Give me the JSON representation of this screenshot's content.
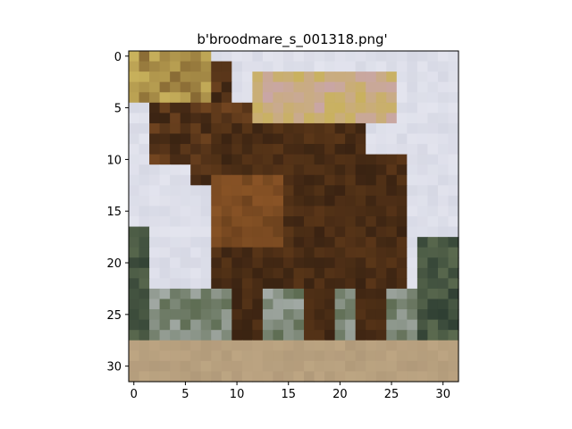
{
  "figure": {
    "title": "b'broodmare_s_001318.png'"
  },
  "image": {
    "subject": "horse-photo",
    "grid": [
      32,
      32
    ],
    "palette": {
      "sky": "#d6d8e4",
      "sky_light": "#e3e4ee",
      "horse_dark": "#3a2312",
      "horse_mid": "#5a3618",
      "horse_light": "#8a5426",
      "ground": "#b19a7a",
      "sand": "#c2aa86",
      "grass": "#5b6a4f",
      "tree": "#2f3f33",
      "yellow": "#c9b25c",
      "pink": "#c9a6a6"
    }
  },
  "axes": {
    "x_ticks": [
      "0",
      "5",
      "10",
      "15",
      "20",
      "25",
      "30"
    ],
    "y_ticks": [
      "0",
      "5",
      "10",
      "15",
      "20",
      "25",
      "30"
    ],
    "xlim": [
      -0.5,
      31.5
    ],
    "ylim": [
      31.5,
      -0.5
    ]
  }
}
